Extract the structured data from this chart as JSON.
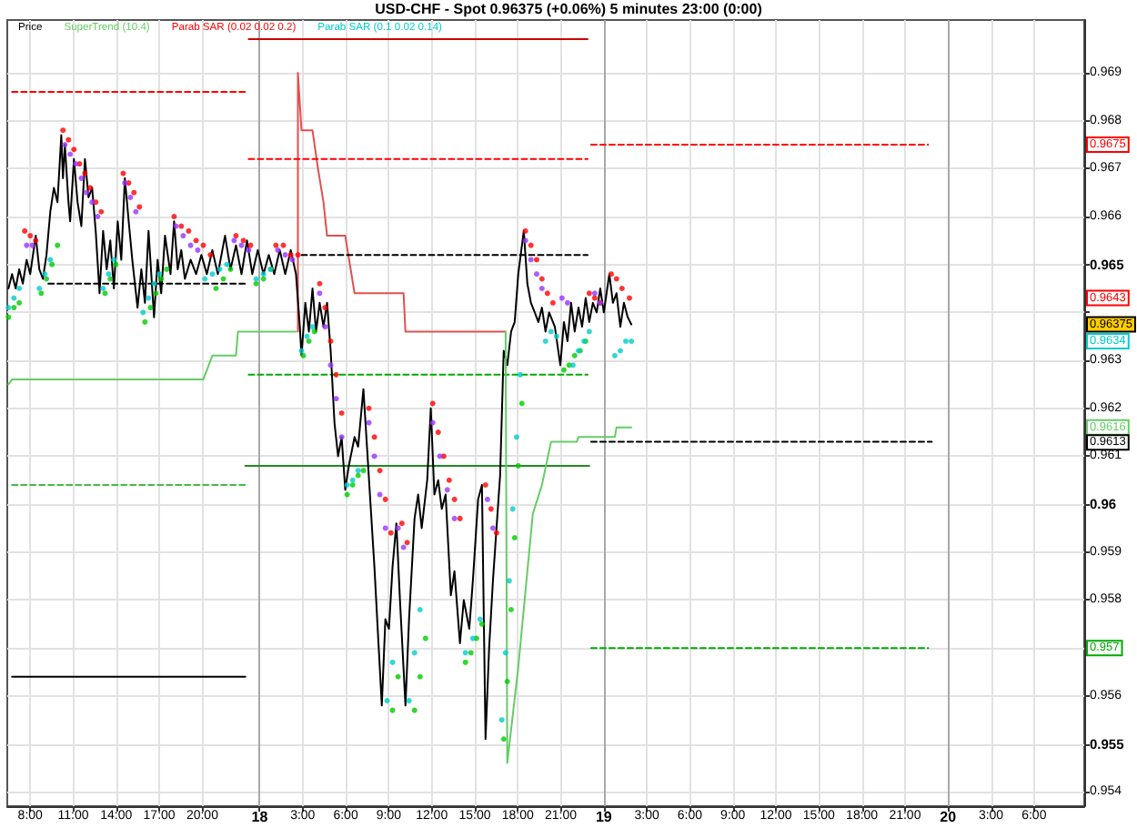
{
  "chart_data": {
    "type": "line",
    "title": "USD-CHF - Spot 0.96375 (+0.06%) 5 minutes 23:00 (0:00)",
    "legend": "top left",
    "grid": true,
    "xlim": [
      "--01-17T06:24",
      "--01-20T09:30"
    ],
    "ylim": [
      0.9537,
      0.9701
    ],
    "xticks": [
      {
        "value": "--01-17T08:00",
        "label": "8:00"
      },
      {
        "value": "--01-17T11:00",
        "label": "11:00"
      },
      {
        "value": "--01-17T14:00",
        "label": "14:00"
      },
      {
        "value": "--01-17T17:00",
        "label": "17:00"
      },
      {
        "value": "--01-17T20:00",
        "label": "20:00"
      },
      {
        "value": "--01-18",
        "label": "18"
      },
      {
        "value": "--01-18T03:00",
        "label": "3:00"
      },
      {
        "value": "--01-18T06:00",
        "label": "6:00"
      },
      {
        "value": "--01-18T09:00",
        "label": "9:00"
      },
      {
        "value": "--01-18T12:00",
        "label": "12:00"
      },
      {
        "value": "--01-18T15:00",
        "label": "15:00"
      },
      {
        "value": "--01-18T18:00",
        "label": "18:00"
      },
      {
        "value": "--01-18T21:00",
        "label": "21:00"
      },
      {
        "value": "--01-19",
        "label": "19"
      },
      {
        "value": "--01-19T03:00",
        "label": "3:00"
      },
      {
        "value": "--01-19T06:00",
        "label": "6:00"
      },
      {
        "value": "--01-19T09:00",
        "label": "9:00"
      },
      {
        "value": "--01-19T12:00",
        "label": "12:00"
      },
      {
        "value": "--01-19T15:00",
        "label": "15:00"
      },
      {
        "value": "--01-19T18:00",
        "label": "18:00"
      },
      {
        "value": "--01-19T21:00",
        "label": "21:00"
      },
      {
        "value": "--01-20",
        "label": "20"
      },
      {
        "value": "--01-20T03:00",
        "label": "3:00"
      },
      {
        "value": "--01-20T06:00",
        "label": "6:00"
      }
    ],
    "yticks": [
      0.954,
      0.955,
      0.956,
      {
        "value": 0.957,
        "label": null
      },
      0.958,
      0.959,
      0.96,
      0.961,
      0.962,
      0.963,
      {
        "value": 0.964,
        "label": null
      },
      0.965,
      0.966,
      0.967,
      0.968,
      0.969
    ],
    "annotations": [
      {
        "text": "0.9675",
        "y": 0.9675
      },
      {
        "text": "0.9643",
        "y": 0.9643
      },
      "0.96375",
      {
        "text": "0.9634",
        "y": 0.9634
      },
      {
        "text": "0.9616",
        "y": 0.9616
      },
      {
        "text": "0.9613",
        "y": 0.9613
      },
      {
        "text": "0.957",
        "y": 0.957
      }
    ],
    "series": [
      {
        "name": "Price",
        "color": "#000000",
        "x": [
          "--01-17T06:29",
          "--01-17T06:44",
          "--01-17T06:59",
          "--01-17T07:14",
          "--01-17T07:29",
          "--01-17T07:45",
          "--01-17T08:00",
          "--01-17T08:23",
          "--01-17T08:38",
          "--01-17T08:53",
          "--01-17T09:08",
          "--01-17T09:24",
          "--01-17T09:39",
          "--01-17T09:54",
          "--01-17T10:10",
          "--01-17T10:17",
          "--01-17T10:25",
          "--01-17T10:40",
          "--01-17T10:47",
          "--01-17T11:03",
          "--01-17T11:18",
          "--01-17T11:34",
          "--01-17T11:49",
          "--01-17T12:04",
          "--01-17T12:19",
          "--01-17T12:34",
          "--01-17T12:50",
          "--01-17T13:05",
          "--01-17T13:20",
          "--01-17T13:35",
          "--01-17T13:50",
          "--01-17T14:06",
          "--01-17T14:21",
          "--01-17T14:36",
          "--01-17T14:52",
          "--01-17T15:07",
          "--01-17T15:29",
          "--01-17T15:45",
          "--01-17T16:00",
          "--01-17T16:15",
          "--01-17T16:38",
          "--01-17T16:53",
          "--01-17T17:08",
          "--01-17T17:24",
          "--01-17T17:47",
          "--01-17T18:02",
          "--01-17T18:17",
          "--01-17T18:32",
          "--01-17T18:47",
          "--01-17T19:11",
          "--01-17T19:34",
          "--01-17T19:56",
          "--01-17T20:19",
          "--01-17T20:42",
          "--01-17T21:05",
          "--01-17T21:35",
          "--01-17T21:58",
          "--01-17T22:21",
          "--01-17T22:44",
          "--01-17T23:07",
          "--01-17T23:29",
          "--01-17T23:52",
          "--01-18T00:16",
          "--01-18T00:38",
          "--01-18T01:01",
          "--01-18T01:24",
          "--01-18T01:47",
          "--01-18T02:10",
          "--01-18T02:32",
          "--01-18T02:48",
          "--01-18T02:55",
          "--01-18T03:11",
          "--01-18T03:26",
          "--01-18T03:41",
          "--01-18T03:56",
          "--01-18T04:11",
          "--01-18T04:27",
          "--01-18T04:42",
          "--01-18T04:57",
          "--01-18T05:13",
          "--01-18T05:28",
          "--01-18T05:43",
          "--01-18T05:58",
          "--01-18T06:13",
          "--01-18T06:37",
          "--01-18T06:52",
          "--01-18T07:14",
          "--01-18T07:29",
          "--01-18T07:45",
          "--01-18T08:00",
          "--01-18T08:16",
          "--01-18T08:31",
          "--01-18T08:46",
          "--01-18T09:01",
          "--01-18T09:16",
          "--01-18T09:32",
          "--01-18T09:47",
          "--01-18T10:10",
          "--01-18T10:25",
          "--01-18T10:48",
          "--01-18T11:03",
          "--01-18T11:18",
          "--01-18T11:41",
          "--01-18T11:56",
          "--01-18T12:11",
          "--01-18T12:27",
          "--01-18T12:42",
          "--01-18T12:58",
          "--01-18T13:20",
          "--01-18T13:35",
          "--01-18T13:58",
          "--01-18T14:14",
          "--01-18T14:37",
          "--01-18T14:52",
          "--01-18T15:14",
          "--01-18T15:30",
          "--01-18T15:45",
          "--01-18T16:00",
          "--01-18T16:16",
          "--01-18T16:31",
          "--01-18T16:46",
          "--01-18T17:01",
          "--01-18T17:16",
          "--01-18T17:32",
          "--01-18T17:47",
          "--01-18T18:02",
          "--01-18T18:25",
          "--01-18T18:40",
          "--01-18T18:55",
          "--01-18T19:11",
          "--01-18T19:26",
          "--01-18T19:41",
          "--01-18T19:56",
          "--01-18T20:11",
          "--01-18T20:35",
          "--01-18T20:58",
          "--01-18T21:13",
          "--01-18T21:28",
          "--01-18T21:43",
          "--01-18T21:58",
          "--01-18T22:14",
          "--01-18T22:29",
          "--01-18T22:44",
          "--01-18T22:59",
          "--01-18T23:14",
          "--01-18T23:30",
          "--01-18T23:45",
          "--01-19T00:00",
          "--01-19T00:23",
          "--01-19T00:38",
          "--01-19T00:53",
          "--01-19T01:09",
          "--01-19T01:24",
          "--01-19T01:40",
          "--01-19T01:55"
        ],
        "values": [
          0.9645,
          0.9648,
          0.9645,
          0.9649,
          0.9646,
          0.9651,
          0.9648,
          0.9656,
          0.9649,
          0.9647,
          0.9652,
          0.9661,
          0.9666,
          0.9663,
          0.9677,
          0.9668,
          0.9675,
          0.9663,
          0.9659,
          0.9672,
          0.9663,
          0.9658,
          0.9672,
          0.9664,
          0.9666,
          0.9657,
          0.9644,
          0.9657,
          0.9649,
          0.9655,
          0.9645,
          0.9659,
          0.9651,
          0.9668,
          0.9659,
          0.9651,
          0.9641,
          0.9649,
          0.9642,
          0.9657,
          0.9639,
          0.9651,
          0.9644,
          0.9656,
          0.9648,
          0.9659,
          0.9649,
          0.9653,
          0.9647,
          0.9651,
          0.9648,
          0.9652,
          0.9648,
          0.9653,
          0.9648,
          0.9656,
          0.9649,
          0.9654,
          0.9648,
          0.9655,
          0.9648,
          0.9653,
          0.9648,
          0.9652,
          0.9648,
          0.9653,
          0.9648,
          0.9653,
          0.9648,
          0.9637,
          0.9631,
          0.9642,
          0.9636,
          0.9645,
          0.9636,
          0.9642,
          0.9637,
          0.9642,
          0.9632,
          0.9617,
          0.961,
          0.9614,
          0.9603,
          0.9608,
          0.9614,
          0.9612,
          0.9624,
          0.9612,
          0.9599,
          0.9587,
          0.9572,
          0.9558,
          0.9576,
          0.9574,
          0.9587,
          0.9596,
          0.958,
          0.9558,
          0.9576,
          0.9597,
          0.9602,
          0.9595,
          0.9605,
          0.962,
          0.9602,
          0.9605,
          0.9599,
          0.9602,
          0.9581,
          0.9586,
          0.9571,
          0.958,
          0.9574,
          0.9584,
          0.9601,
          0.9604,
          0.9551,
          0.957,
          0.9584,
          0.9595,
          0.9606,
          0.9632,
          0.9629,
          0.9636,
          0.9638,
          0.9648,
          0.9657,
          0.9646,
          0.9642,
          0.964,
          0.9638,
          0.9641,
          0.9636,
          0.964,
          0.9637,
          0.9629,
          0.9638,
          0.9634,
          0.9642,
          0.9636,
          0.9641,
          0.9637,
          0.9643,
          0.9638,
          0.9642,
          0.964,
          0.9645,
          0.964,
          0.9648,
          0.9642,
          0.9644,
          0.9637,
          0.9642,
          0.9639,
          0.96375
        ]
      },
      {
        "name": "SuperTrend (10.4)",
        "color": "#66cc66",
        "x": [
          "--01-17T06:29",
          "--01-17T06:44",
          "--01-17T20:04",
          "--01-17T20:42",
          "--01-17T22:21",
          "--01-17T22:29",
          "--01-18T02:32",
          "--01-18T02:36",
          "--01-18T17:09",
          "--01-18T17:16",
          "--01-18T18:02",
          "--01-18T18:40",
          "--01-18T19:03",
          "--01-18T19:41",
          "--01-18T20:19",
          "--01-18T22:06",
          "--01-18T22:14",
          "--01-19T00:46",
          "--01-19T00:53",
          "--01-19T01:55"
        ],
        "values": [
          0.9625,
          0.9626,
          0.9626,
          0.9631,
          0.9631,
          0.9636,
          0.9636,
          null,
          0.9636,
          0.9546,
          0.9566,
          0.9586,
          0.9598,
          0.9604,
          0.9613,
          0.9613,
          0.9614,
          0.9614,
          0.9616,
          0.9616
        ]
      },
      {
        "name": "Parab SAR (0.02 0.02 0.2)",
        "type": "scatter",
        "marker": "circle",
        "color": "#ff0000",
        "x": [
          "--01-17T06:29",
          "--01-17T06:52",
          "--01-17T07:14",
          "--01-17T07:37",
          "--01-17T08:00",
          "--01-17T08:23",
          "--01-17T08:46",
          "--01-17T09:08",
          "--01-17T09:31",
          "--01-17T09:54",
          "--01-17T10:17",
          "--01-17T10:40",
          "--01-17T11:03",
          "--01-17T11:26",
          "--01-17T11:49",
          "--01-17T12:11",
          "--01-17T12:34",
          "--01-17T12:57",
          "--01-17T13:13",
          "--01-17T13:35",
          "--01-17T13:58",
          "--01-17T14:29",
          "--01-17T14:52",
          "--01-17T15:14",
          "--01-17T15:37",
          "--01-17T16:00",
          "--01-17T16:23",
          "--01-17T16:46",
          "--01-17T17:08",
          "--01-17T17:31",
          "--01-17T18:02",
          "--01-17T18:32",
          "--01-17T19:03",
          "--01-17T19:34",
          "--01-17T20:04",
          "--01-17T20:34",
          "--01-17T20:57",
          "--01-17T21:28",
          "--01-17T21:58",
          "--01-17T22:21",
          "--01-17T22:52",
          "--01-17T23:22",
          "--01-17T23:45",
          "--01-18T00:16",
          "--01-18T00:46",
          "--01-18T01:08",
          "--01-18T01:39",
          "--01-18T02:10",
          "--01-18T02:40",
          "--01-18T03:03",
          "--01-18T03:26",
          "--01-18T03:49",
          "--01-18T04:11",
          "--01-18T04:34",
          "--01-18T04:57",
          "--01-18T05:20",
          "--01-18T05:43",
          "--01-18T06:06",
          "--01-18T06:29",
          "--01-18T06:52",
          "--01-18T07:14",
          "--01-18T07:37",
          "--01-18T08:00",
          "--01-18T08:23",
          "--01-18T08:46",
          "--01-18T09:09",
          "--01-18T09:16",
          "--01-18T09:39",
          "--01-18T09:55",
          "--01-18T10:17",
          "--01-18T10:48",
          "--01-18T11:11",
          "--01-18T11:34",
          "--01-18T12:04",
          "--01-18T12:27",
          "--01-18T12:50",
          "--01-18T13:13",
          "--01-18T13:35",
          "--01-18T13:58",
          "--01-18T14:21",
          "--01-18T14:44",
          "--01-18T15:07",
          "--01-18T15:30",
          "--01-18T15:45",
          "--01-18T16:08",
          "--01-18T16:31",
          "--01-18T17:01",
          "--01-18T17:16",
          "--01-18T17:32",
          "--01-18T17:47",
          "--01-18T18:02",
          "--01-18T18:17",
          "--01-18T18:32",
          "--01-18T18:55",
          "--01-18T19:19",
          "--01-18T19:41",
          "--01-18T20:04",
          "--01-18T20:27",
          "--01-18T21:13",
          "--01-18T21:35",
          "--01-18T21:58",
          "--01-18T22:21",
          "--01-18T22:44",
          "--01-18T22:59",
          "--01-18T23:22",
          "--01-18T23:45",
          "--01-19T00:31",
          "--01-19T00:53",
          "--01-19T01:16",
          "--01-19T01:47"
        ],
        "values": [
          0.9639,
          0.9641,
          0.9642,
          0.9657,
          0.9656,
          0.9655,
          0.9644,
          0.9647,
          0.965,
          0.9654,
          0.9678,
          0.9676,
          0.9674,
          0.9671,
          0.9669,
          0.9666,
          0.9663,
          0.9661,
          0.9644,
          0.9647,
          0.965,
          0.9669,
          0.9667,
          0.9665,
          0.9662,
          0.9638,
          0.9641,
          0.9644,
          0.9647,
          0.9649,
          0.966,
          0.9658,
          0.9657,
          0.9655,
          0.9654,
          0.9652,
          0.9645,
          0.9647,
          0.9649,
          0.9656,
          0.9655,
          0.9654,
          0.9646,
          0.9647,
          0.9649,
          0.9654,
          0.9654,
          0.9652,
          0.9652,
          0.9631,
          0.9634,
          0.9636,
          0.9646,
          0.9641,
          0.9634,
          0.9627,
          0.9619,
          0.9602,
          0.9604,
          0.9606,
          0.9607,
          0.962,
          0.9614,
          0.9607,
          0.9601,
          0.9594,
          0.9557,
          0.9564,
          0.9596,
          0.9592,
          0.9557,
          0.9564,
          0.9572,
          0.9621,
          0.9615,
          0.961,
          0.9605,
          0.9601,
          0.9597,
          0.9567,
          0.9569,
          0.9572,
          0.9575,
          0.9604,
          0.9599,
          0.9594,
          0.9551,
          0.9563,
          0.9578,
          0.9593,
          0.9608,
          0.9621,
          0.9657,
          0.9654,
          0.9651,
          0.9647,
          0.9644,
          0.9642,
          0.9628,
          0.9629,
          0.9631,
          0.9632,
          0.9634,
          0.9644,
          0.9643,
          0.9642,
          0.9648,
          0.9647,
          0.9645,
          0.9643
        ],
        "colors": [
          "#00cc00",
          "#00cc00",
          "#00cc00",
          "#ff0000",
          "#ff0000",
          "#ff0000",
          "#00cc00",
          "#00cc00",
          "#00cc00",
          "#00cc00",
          "#ff0000",
          "#ff0000",
          "#ff0000",
          "#ff0000",
          "#ff0000",
          "#ff0000",
          "#ff0000",
          "#ff0000",
          "#00cc00",
          "#00cc00",
          "#00cc00",
          "#ff0000",
          "#ff0000",
          "#ff0000",
          "#ff0000",
          "#00cc00",
          "#00cc00",
          "#00cc00",
          "#00cc00",
          "#00cc00",
          "#ff0000",
          "#ff0000",
          "#ff0000",
          "#ff0000",
          "#ff0000",
          "#ff0000",
          "#00cc00",
          "#00cc00",
          "#00cc00",
          "#ff0000",
          "#ff0000",
          "#ff0000",
          "#00cc00",
          "#00cc00",
          "#00cc00",
          "#ff0000",
          "#ff0000",
          "#ff0000",
          "#ff0000",
          "#00cc00",
          "#00cc00",
          "#00cc00",
          "#ff0000",
          "#ff0000",
          "#ff0000",
          "#ff0000",
          "#ff0000",
          "#00cc00",
          "#00cc00",
          "#00cc00",
          "#00cc00",
          "#ff0000",
          "#ff0000",
          "#ff0000",
          "#ff0000",
          "#ff0000",
          "#00cc00",
          "#00cc00",
          "#ff0000",
          "#ff0000",
          "#00cc00",
          "#00cc00",
          "#00cc00",
          "#ff0000",
          "#ff0000",
          "#ff0000",
          "#ff0000",
          "#ff0000",
          "#ff0000",
          "#00cc00",
          "#00cc00",
          "#00cc00",
          "#00cc00",
          "#ff0000",
          "#ff0000",
          "#ff0000",
          "#00cc00",
          "#00cc00",
          "#00cc00",
          "#00cc00",
          "#00cc00",
          "#00cc00",
          "#ff0000",
          "#ff0000",
          "#ff0000",
          "#ff0000",
          "#ff0000",
          "#ff0000",
          "#00cc00",
          "#00cc00",
          "#00cc00",
          "#00cc00",
          "#00cc00",
          "#ff0000",
          "#ff0000",
          "#ff0000",
          "#ff0000",
          "#ff0000",
          "#ff0000",
          "#ff0000"
        ]
      },
      {
        "name": "Parab SAR (0.1 0.02 0.14)",
        "type": "scatter",
        "marker": "circle",
        "color": "#00cccc",
        "x": [
          "--01-17T06:29",
          "--01-17T06:52",
          "--01-17T07:14",
          "--01-17T07:45",
          "--01-17T08:08",
          "--01-17T08:38",
          "--01-17T09:01",
          "--01-17T09:24",
          "--01-17T10:25",
          "--01-17T10:47",
          "--01-17T11:10",
          "--01-17T11:34",
          "--01-17T11:56",
          "--01-17T12:19",
          "--01-17T12:42",
          "--01-17T13:05",
          "--01-17T13:28",
          "--01-17T13:50",
          "--01-17T14:36",
          "--01-17T14:59",
          "--01-17T15:22",
          "--01-17T15:52",
          "--01-17T16:15",
          "--01-17T16:38",
          "--01-17T17:01",
          "--01-17T18:10",
          "--01-17T18:40",
          "--01-17T19:11",
          "--01-17T19:41",
          "--01-17T20:11",
          "--01-17T20:42",
          "--01-17T21:13",
          "--01-17T21:43",
          "--01-17T22:13",
          "--01-17T22:44",
          "--01-17T23:14",
          "--01-17T23:45",
          "--01-18T00:16",
          "--01-18T00:46",
          "--01-18T01:16",
          "--01-18T01:47",
          "--01-18T02:17",
          "--01-18T02:55",
          "--01-18T03:18",
          "--01-18T03:41",
          "--01-18T04:11",
          "--01-18T04:34",
          "--01-18T04:57",
          "--01-18T05:20",
          "--01-18T05:43",
          "--01-18T06:06",
          "--01-18T06:29",
          "--01-18T06:52",
          "--01-18T07:37",
          "--01-18T08:00",
          "--01-18T08:23",
          "--01-18T08:46",
          "--01-18T08:53",
          "--01-18T09:16",
          "--01-18T09:39",
          "--01-18T10:02",
          "--01-18T10:25",
          "--01-18T10:48",
          "--01-18T11:11",
          "--01-18T12:04",
          "--01-18T12:34",
          "--01-18T13:05",
          "--01-18T13:35",
          "--01-18T14:21",
          "--01-18T14:52",
          "--01-18T15:22",
          "--01-18T15:53",
          "--01-18T16:16",
          "--01-18T16:53",
          "--01-18T17:09",
          "--01-18T17:24",
          "--01-18T17:39",
          "--01-18T17:55",
          "--01-18T18:10",
          "--01-18T18:32",
          "--01-18T18:55",
          "--01-18T19:19",
          "--01-18T19:41",
          "--01-18T19:56",
          "--01-18T20:19",
          "--01-18T20:42",
          "--01-18T21:05",
          "--01-18T21:28",
          "--01-18T21:51",
          "--01-18T22:14",
          "--01-18T22:37",
          "--01-18T22:59",
          "--01-18T23:22",
          "--01-18T23:45",
          "--01-19T00:46",
          "--01-19T01:09",
          "--01-19T01:32",
          "--01-19T01:55"
        ],
        "values": [
          0.9641,
          0.9643,
          0.9645,
          0.9654,
          0.9654,
          0.9645,
          0.9648,
          0.9651,
          0.9675,
          0.9673,
          0.9671,
          0.9668,
          0.9665,
          0.9663,
          0.966,
          0.9645,
          0.9648,
          0.9651,
          0.9667,
          0.9664,
          0.9661,
          0.964,
          0.9643,
          0.9646,
          0.9648,
          0.9658,
          0.9656,
          0.9654,
          0.9653,
          0.9647,
          0.9648,
          0.9649,
          0.965,
          0.9655,
          0.9654,
          0.9653,
          0.9647,
          0.9648,
          0.9649,
          0.9653,
          0.9652,
          0.9651,
          0.9632,
          0.9635,
          0.9637,
          0.9644,
          0.9637,
          0.9629,
          0.9622,
          0.9614,
          0.9604,
          0.9605,
          0.9607,
          0.9617,
          0.961,
          0.9602,
          0.9595,
          0.9559,
          0.9567,
          0.9595,
          0.9591,
          0.9559,
          0.9569,
          0.9578,
          0.9617,
          0.961,
          0.9603,
          0.9597,
          0.9569,
          0.9572,
          0.9576,
          0.9601,
          0.9595,
          0.9555,
          0.9569,
          0.9584,
          0.9599,
          0.9614,
          0.9627,
          0.9655,
          0.9651,
          0.9648,
          0.9645,
          0.9634,
          0.9636,
          0.9635,
          0.9643,
          0.9642,
          0.9629,
          0.9632,
          0.9634,
          0.9636,
          0.9644,
          0.9642,
          0.9631,
          0.9632,
          0.9634,
          0.9634
        ],
        "colors": [
          "#00cccc",
          "#00cccc",
          "#00cccc",
          "#9933ff",
          "#9933ff",
          "#00cccc",
          "#00cccc",
          "#00cccc",
          "#9933ff",
          "#9933ff",
          "#9933ff",
          "#9933ff",
          "#9933ff",
          "#9933ff",
          "#9933ff",
          "#00cccc",
          "#00cccc",
          "#00cccc",
          "#9933ff",
          "#9933ff",
          "#9933ff",
          "#00cccc",
          "#00cccc",
          "#00cccc",
          "#00cccc",
          "#9933ff",
          "#9933ff",
          "#9933ff",
          "#9933ff",
          "#00cccc",
          "#00cccc",
          "#00cccc",
          "#00cccc",
          "#9933ff",
          "#9933ff",
          "#9933ff",
          "#00cccc",
          "#00cccc",
          "#00cccc",
          "#9933ff",
          "#9933ff",
          "#9933ff",
          "#00cccc",
          "#00cccc",
          "#00cccc",
          "#9933ff",
          "#9933ff",
          "#9933ff",
          "#9933ff",
          "#9933ff",
          "#00cccc",
          "#00cccc",
          "#00cccc",
          "#9933ff",
          "#9933ff",
          "#9933ff",
          "#9933ff",
          "#00cccc",
          "#00cccc",
          "#9933ff",
          "#9933ff",
          "#00cccc",
          "#00cccc",
          "#00cccc",
          "#9933ff",
          "#9933ff",
          "#9933ff",
          "#9933ff",
          "#00cccc",
          "#00cccc",
          "#00cccc",
          "#9933ff",
          "#9933ff",
          "#00cccc",
          "#00cccc",
          "#00cccc",
          "#00cccc",
          "#00cccc",
          "#00cccc",
          "#9933ff",
          "#9933ff",
          "#9933ff",
          "#9933ff",
          "#00cccc",
          "#00cccc",
          "#00cccc",
          "#9933ff",
          "#9933ff",
          "#00cccc",
          "#00cccc",
          "#00cccc",
          "#00cccc",
          "#9933ff",
          "#9933ff",
          "#00cccc",
          "#00cccc",
          "#00cccc",
          "#00cccc"
        ]
      },
      {
        "color": "#e05050",
        "x": [
          "--01-18T02:40",
          "--01-18T02:40",
          "--01-18T02:55",
          "--01-18T03:41",
          "--01-18T04:04",
          "--01-18T04:27",
          "--01-18T04:42",
          "--01-18T05:58",
          "--01-18T06:37",
          "--01-18T10:02",
          "--01-18T10:10",
          "--01-18T17:09"
        ],
        "values": [
          0.9636,
          0.969,
          0.9678,
          0.9678,
          0.967,
          0.9663,
          0.9656,
          0.9656,
          0.9644,
          0.9644,
          0.9636,
          0.9636
        ]
      },
      {
        "color": "#ff0000",
        "line_style": "dashed",
        "x": [
          "--01-17T06:44",
          "--01-17T23:00"
        ],
        "values": [
          0.9686,
          0.9686
        ]
      },
      {
        "color": "#000000",
        "line_style": "dashed",
        "x": [
          "--01-17T09:16",
          "--01-17T23:00"
        ],
        "values": [
          0.9646,
          0.9646
        ]
      },
      {
        "color": "#44bb44",
        "line_style": "dashed",
        "x": [
          "--01-17T06:44",
          "--01-17T23:00"
        ],
        "values": [
          0.9604,
          0.9604
        ]
      },
      {
        "color": "#000000",
        "line_style": "solid",
        "x": [
          "--01-17T06:44",
          "--01-17T23:00"
        ],
        "values": [
          0.9564,
          0.9564
        ]
      },
      {
        "color": "#cc0000",
        "line_style": "solid",
        "x": [
          "--01-17T23:14",
          "--01-18T22:52"
        ],
        "values": [
          0.9697,
          0.9697
        ]
      },
      {
        "color": "#ff0000",
        "line_style": "dashed",
        "x": [
          "--01-17T23:14",
          "--01-18T22:52"
        ],
        "values": [
          0.9672,
          0.9672
        ]
      },
      {
        "color": "#000000",
        "line_style": "dashed",
        "x": [
          "--01-18T02:55",
          "--01-18T22:52"
        ],
        "values": [
          0.9652,
          0.9652
        ]
      },
      {
        "color": "#00aa00",
        "line_style": "dashed",
        "x": [
          "--01-17T23:14",
          "--01-18T22:52"
        ],
        "values": [
          0.9627,
          0.9627
        ]
      },
      {
        "color": "#228b22",
        "line_style": "solid",
        "x": [
          "--01-17T23:00",
          "--01-18T22:59"
        ],
        "values": [
          0.9608,
          0.9608
        ]
      },
      {
        "color": "#ff0000",
        "line_style": "dashed",
        "x": [
          "--01-18T23:07",
          "--01-19T22:37"
        ],
        "values": [
          0.9675,
          0.9675
        ]
      },
      {
        "color": "#000000",
        "line_style": "dashed",
        "x": [
          "--01-18T23:07",
          "--01-19T22:52"
        ],
        "values": [
          0.9613,
          0.9613
        ]
      },
      {
        "color": "#00aa00",
        "line_style": "dashed",
        "x": [
          "--01-18T23:07",
          "--01-19T22:37"
        ],
        "values": [
          0.957,
          0.957
        ]
      }
    ]
  }
}
